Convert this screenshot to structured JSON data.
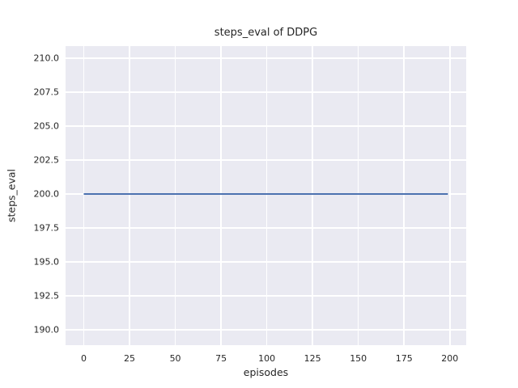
{
  "figure": {
    "title": "steps_eval of DDPG",
    "xlabel": "episodes",
    "ylabel": "steps_eval"
  },
  "chart_data": {
    "type": "line",
    "title": "steps_eval of DDPG",
    "xlabel": "episodes",
    "ylabel": "steps_eval",
    "x_tick_values": [
      0,
      25,
      50,
      75,
      100,
      125,
      150,
      175,
      200
    ],
    "x_tick_labels": [
      "0",
      "25",
      "50",
      "75",
      "100",
      "125",
      "150",
      "175",
      "200"
    ],
    "y_tick_values": [
      190.0,
      192.5,
      195.0,
      197.5,
      200.0,
      202.5,
      205.0,
      207.5,
      210.0
    ],
    "y_tick_labels": [
      "190.0",
      "192.5",
      "195.0",
      "197.5",
      "200.0",
      "202.5",
      "205.0",
      "207.5",
      "210.0"
    ],
    "xlim": [
      -9.95,
      208.95
    ],
    "ylim": [
      188.87,
      210.89
    ],
    "grid": true,
    "legend": false,
    "colors": {
      "plot_background": "#eaeaf2",
      "grid": "#ffffff",
      "text": "#262626",
      "line": "#4c72b0"
    },
    "series": [
      {
        "name": "DDPG",
        "color": "#4c72b0",
        "x": [
          0,
          199
        ],
        "y": [
          200.0,
          200.0
        ]
      }
    ]
  }
}
